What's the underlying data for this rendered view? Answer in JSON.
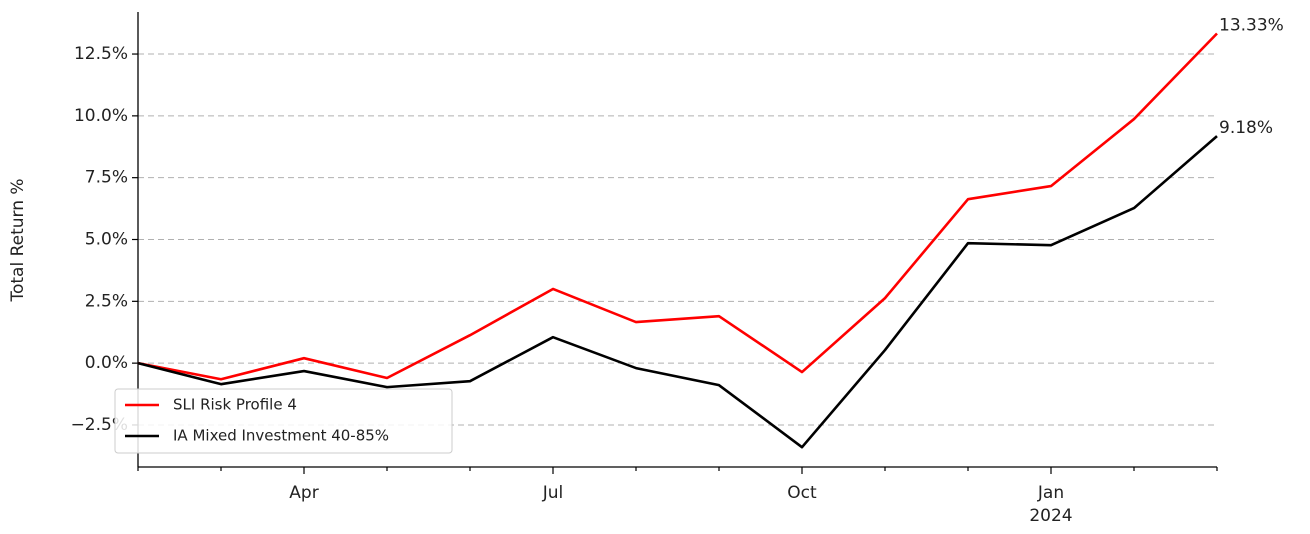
{
  "chart_data": {
    "type": "line",
    "y_label": "Total Return %",
    "categories": [
      null,
      null,
      "Apr",
      null,
      null,
      "Jul",
      null,
      null,
      "Oct",
      null,
      null,
      "Jan\n2024",
      null,
      null
    ],
    "series": [
      {
        "name": "SLI Risk Profile 4",
        "color": "#ff0000",
        "values": [
          0,
          -0.65,
          0.2,
          -0.6,
          1.13,
          3.0,
          1.66,
          1.9,
          -0.36,
          2.63,
          6.63,
          7.16,
          9.87,
          13.33
        ],
        "value_labels": [
          null,
          null,
          null,
          null,
          null,
          null,
          null,
          null,
          null,
          null,
          null,
          null,
          null,
          "13.33%"
        ]
      },
      {
        "name": "IA Mixed Investment 40-85%",
        "color": "#000000",
        "values": [
          0,
          -0.85,
          -0.32,
          -0.97,
          -0.73,
          1.05,
          -0.2,
          -0.89,
          -3.4,
          0.53,
          4.85,
          4.77,
          6.27,
          9.18
        ],
        "value_labels": [
          null,
          null,
          null,
          null,
          null,
          null,
          null,
          null,
          null,
          null,
          null,
          null,
          null,
          "9.18%"
        ]
      }
    ],
    "ylim": [
      -4.2,
      14.2
    ],
    "yticks": [
      {
        "value": -2.5,
        "label": "−2.5%"
      },
      {
        "value": 0,
        "label": "0.0%"
      },
      {
        "value": 2.5,
        "label": "2.5%"
      },
      {
        "value": 5,
        "label": "5.0%"
      },
      {
        "value": 7.5,
        "label": "7.5%"
      },
      {
        "value": 10,
        "label": "10.0%"
      },
      {
        "value": 12.5,
        "label": "12.5%"
      }
    ],
    "grid": true,
    "legend": "lower left"
  }
}
